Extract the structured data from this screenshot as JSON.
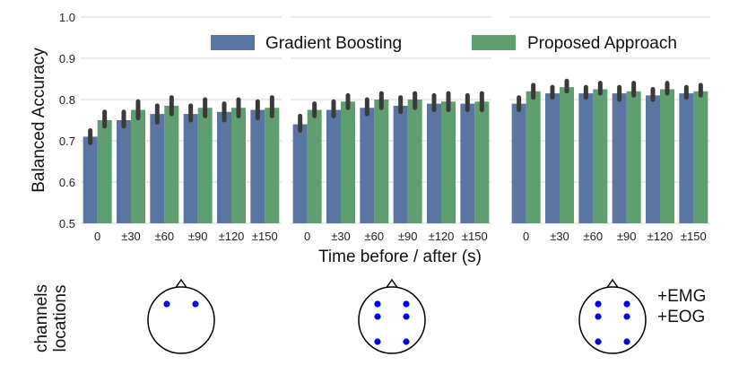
{
  "chart_data": {
    "type": "bar",
    "ylabel": "Balanced Accuracy",
    "xlabel": "Time before / after (s)",
    "ylim": [
      0.5,
      1.0
    ],
    "yticks": [
      "0.5",
      "0.6",
      "0.7",
      "0.8",
      "0.9",
      "1.0"
    ],
    "categories": [
      "0",
      "±30",
      "±60",
      "±90",
      "±120",
      "±150"
    ],
    "grid": true,
    "legend_position": "top-right",
    "colors": {
      "Gradient Boosting": "#5975a4",
      "Proposed Approach": "#5f9e6e",
      "errorbar": "#3a3a3a",
      "electrode": "#0000ee"
    },
    "panels": [
      {
        "series": [
          {
            "name": "Gradient Boosting",
            "values": [
              0.71,
              0.75,
              0.765,
              0.765,
              0.77,
              0.775
            ],
            "err_low": [
              0.695,
              0.735,
              0.745,
              0.75,
              0.75,
              0.755
            ],
            "err_high": [
              0.725,
              0.77,
              0.785,
              0.785,
              0.79,
              0.795
            ]
          },
          {
            "name": "Proposed Approach",
            "values": [
              0.75,
              0.775,
              0.785,
              0.78,
              0.78,
              0.78
            ],
            "err_low": [
              0.735,
              0.755,
              0.765,
              0.76,
              0.76,
              0.76
            ],
            "err_high": [
              0.77,
              0.795,
              0.805,
              0.8,
              0.8,
              0.805
            ]
          }
        ],
        "channels": 2,
        "extra": []
      },
      {
        "series": [
          {
            "name": "Gradient Boosting",
            "values": [
              0.74,
              0.775,
              0.78,
              0.785,
              0.79,
              0.79
            ],
            "err_low": [
              0.725,
              0.76,
              0.765,
              0.77,
              0.775,
              0.775
            ],
            "err_high": [
              0.76,
              0.795,
              0.8,
              0.805,
              0.81,
              0.81
            ]
          },
          {
            "name": "Proposed Approach",
            "values": [
              0.775,
              0.795,
              0.8,
              0.8,
              0.795,
              0.795
            ],
            "err_low": [
              0.76,
              0.78,
              0.78,
              0.78,
              0.775,
              0.775
            ],
            "err_high": [
              0.79,
              0.81,
              0.815,
              0.815,
              0.815,
              0.815
            ]
          }
        ],
        "channels": 6,
        "extra": []
      },
      {
        "series": [
          {
            "name": "Gradient Boosting",
            "values": [
              0.79,
              0.815,
              0.815,
              0.815,
              0.81,
              0.815
            ],
            "err_low": [
              0.775,
              0.805,
              0.805,
              0.8,
              0.8,
              0.805
            ],
            "err_high": [
              0.805,
              0.83,
              0.83,
              0.83,
              0.825,
              0.83
            ]
          },
          {
            "name": "Proposed Approach",
            "values": [
              0.82,
              0.83,
              0.825,
              0.82,
              0.825,
              0.82
            ],
            "err_low": [
              0.805,
              0.82,
              0.815,
              0.81,
              0.815,
              0.81
            ],
            "err_high": [
              0.835,
              0.845,
              0.84,
              0.84,
              0.84,
              0.835
            ]
          }
        ],
        "channels": 6,
        "extra": [
          "+EMG",
          "+EOG"
        ]
      }
    ],
    "bottom_label": [
      "channels",
      "locations"
    ]
  }
}
